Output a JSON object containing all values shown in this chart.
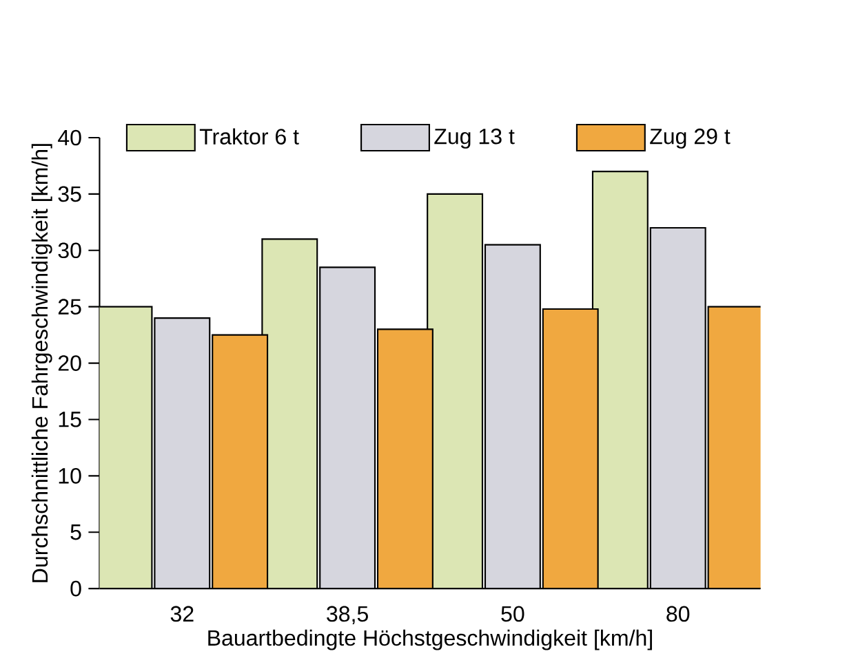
{
  "chart_data": {
    "type": "bar",
    "xlabel": "Bauartbedingte Höchstgeschwindigkeit [km/h]",
    "ylabel": "Durchschnittliche Fahrgeschwindigkeit [km/h]",
    "categories": [
      "32",
      "38,5",
      "50",
      "80"
    ],
    "series": [
      {
        "name": "Traktor 6 t",
        "color": "#dce6b4",
        "values": [
          25,
          31,
          35,
          37
        ]
      },
      {
        "name": "Zug 13 t",
        "color": "#d6d6de",
        "values": [
          24,
          28.5,
          30.5,
          32
        ]
      },
      {
        "name": "Zug 29 t",
        "color": "#f0a840",
        "values": [
          22.5,
          23,
          24.8,
          25
        ]
      }
    ],
    "ylim": [
      0,
      40
    ],
    "yticks": [
      0,
      5,
      10,
      15,
      20,
      25,
      30,
      35,
      40
    ],
    "legend": "top",
    "grid": false
  }
}
